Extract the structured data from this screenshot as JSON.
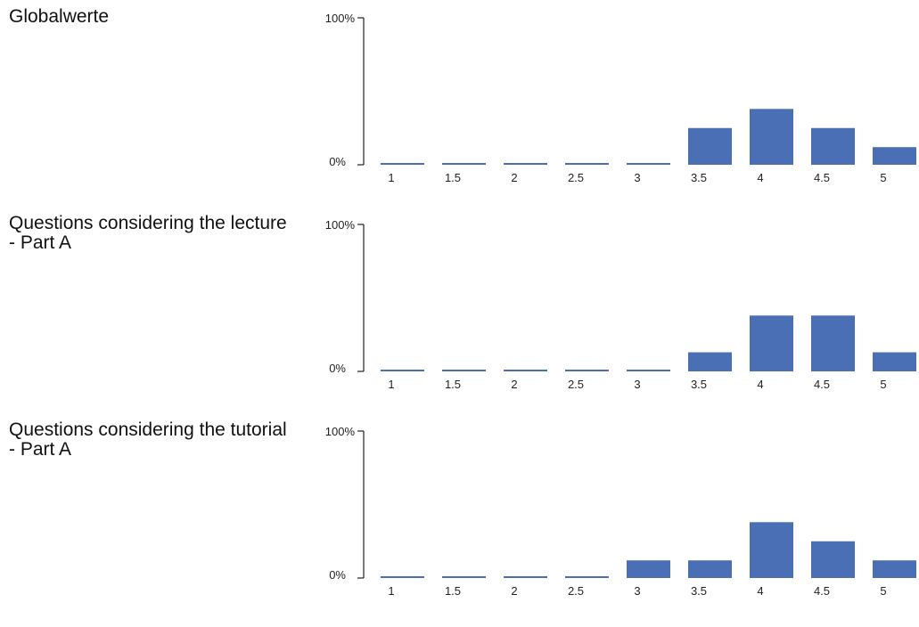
{
  "chart_data": [
    {
      "type": "bar",
      "title": "Globalwerte",
      "categories": [
        "1",
        "1.5",
        "2",
        "2.5",
        "3",
        "3.5",
        "4",
        "4.5",
        "5"
      ],
      "values": [
        0,
        0,
        0,
        0,
        0,
        25,
        38,
        25,
        12
      ],
      "ylim": [
        0,
        100
      ],
      "yticks": [
        "0%",
        "100%"
      ],
      "xlabel": "",
      "ylabel": "",
      "color": "#4a6fb5",
      "grid": false
    },
    {
      "type": "bar",
      "title": "Questions considering the lecture - Part A",
      "categories": [
        "1",
        "1.5",
        "2",
        "2.5",
        "3",
        "3.5",
        "4",
        "4.5",
        "5"
      ],
      "values": [
        0,
        0,
        0,
        0,
        0,
        13,
        38,
        38,
        13
      ],
      "ylim": [
        0,
        100
      ],
      "yticks": [
        "0%",
        "100%"
      ],
      "xlabel": "",
      "ylabel": "",
      "color": "#4a6fb5",
      "grid": false
    },
    {
      "type": "bar",
      "title": "Questions considering the tutorial - Part A",
      "categories": [
        "1",
        "1.5",
        "2",
        "2.5",
        "3",
        "3.5",
        "4",
        "4.5",
        "5"
      ],
      "values": [
        0,
        0,
        0,
        0,
        12,
        12,
        38,
        25,
        12
      ],
      "ylim": [
        0,
        100
      ],
      "yticks": [
        "0%",
        "100%"
      ],
      "xlabel": "",
      "ylabel": "",
      "color": "#4a6fb5",
      "grid": false
    }
  ]
}
